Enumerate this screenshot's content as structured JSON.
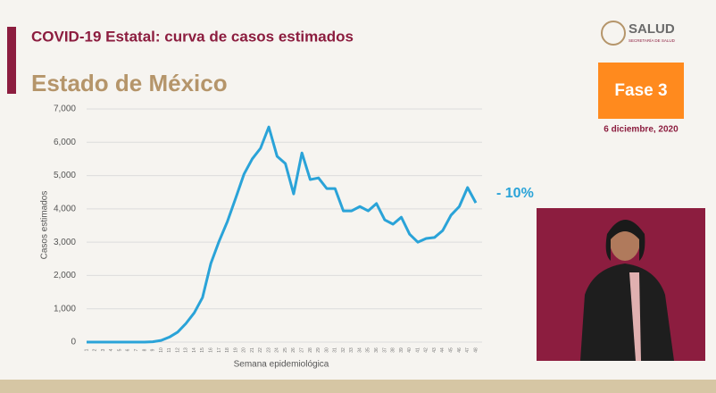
{
  "header": {
    "title": "COVID-19 Estatal: curva de casos estimados",
    "subtitle": "Estado de México",
    "logo": "SALUD",
    "logo_sub": "SECRETARÍA DE SALUD",
    "phase": "Fase 3",
    "date": "6 diciembre, 2020"
  },
  "chart_data": {
    "type": "line",
    "y_label": "Casos estimados",
    "x_label": "Semana epidemiológica",
    "annotation": "- 10%",
    "color": "#2aa3d8",
    "categories": [
      "1",
      "2",
      "3",
      "4",
      "5",
      "6",
      "7",
      "8",
      "9",
      "10",
      "11",
      "12",
      "13",
      "14",
      "15",
      "16",
      "17",
      "18",
      "19",
      "20",
      "21",
      "22",
      "23",
      "24",
      "25",
      "26",
      "27",
      "28",
      "29",
      "30",
      "31",
      "32",
      "33",
      "34",
      "35",
      "36",
      "37",
      "38",
      "39",
      "40",
      "41",
      "42",
      "43",
      "44",
      "45",
      "46",
      "47",
      "48"
    ],
    "values": [
      0,
      0,
      0,
      0,
      0,
      0,
      0,
      0,
      10,
      50,
      150,
      300,
      560,
      880,
      1340,
      2360,
      3030,
      3620,
      4320,
      5040,
      5500,
      5820,
      6460,
      5580,
      5360,
      4450,
      5680,
      4880,
      4930,
      4610,
      4610,
      3940,
      3940,
      4070,
      3940,
      4160,
      3670,
      3540,
      3750,
      3240,
      3000,
      3110,
      3140,
      3350,
      3810,
      4070,
      4640,
      4180
    ],
    "ylim": [
      0,
      7000
    ],
    "yticks": [
      0,
      {
        "value": 1000,
        "label": "1,000"
      },
      {
        "value": 2000,
        "label": "2,000"
      },
      {
        "value": 3000,
        "label": "3,000"
      },
      {
        "value": 4000,
        "label": "4,000"
      },
      {
        "value": 5000,
        "label": "5,000"
      },
      {
        "value": 6000,
        "label": "6,000"
      },
      {
        "value": 7000,
        "label": "7,000"
      }
    ],
    "grid": true
  }
}
